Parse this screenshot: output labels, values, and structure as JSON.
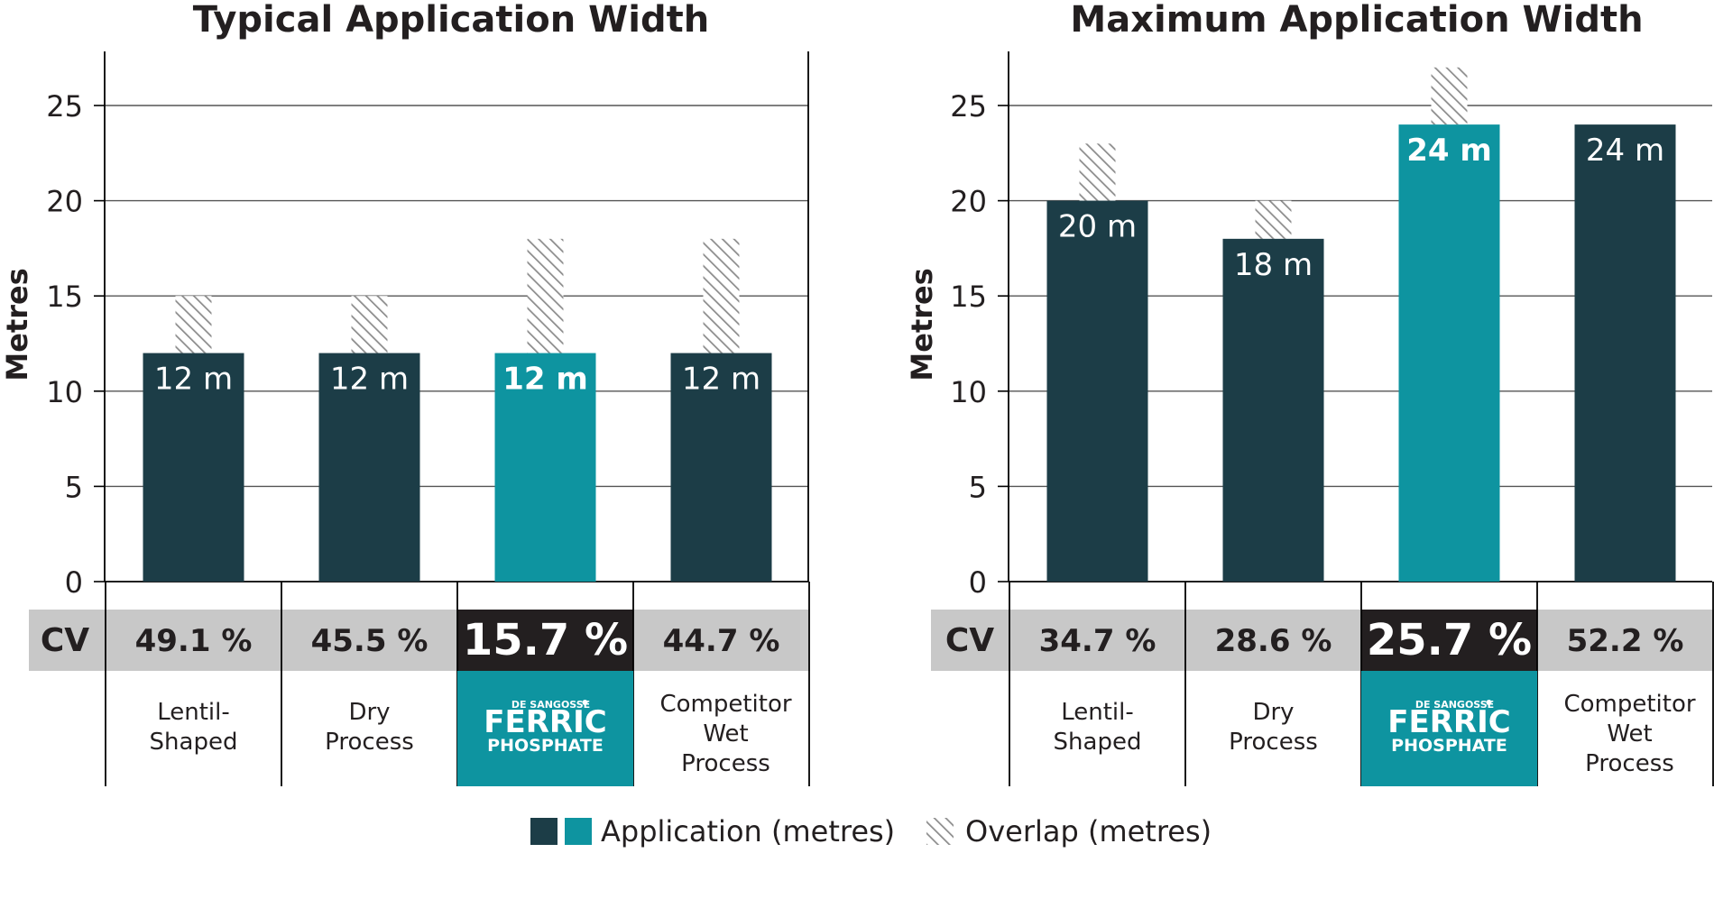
{
  "colors": {
    "dark_bar": "#1c3d47",
    "teal_bar": "#0e94a0",
    "cv_band": "#c8c8c8",
    "cv_highlight": "#231f20",
    "grid": "#000000",
    "text": "#231f20"
  },
  "legend": {
    "application_label": "Application (metres)",
    "overlap_label": "Overlap (metres)"
  },
  "brand": {
    "top_text": "DE SANGOSSE",
    "line1": "FERRIC",
    "line2": "PHOSPHATE"
  },
  "cv_label": "CV",
  "chart_data": [
    {
      "type": "bar",
      "title": "Typical Application Width",
      "ylabel": "Metres",
      "ylim": [
        0,
        27
      ],
      "yticks": [
        "0",
        "5",
        "10",
        "15",
        "20",
        "25"
      ],
      "grid": true,
      "categories": [
        {
          "lines": [
            "Lentil-",
            "Shaped"
          ],
          "brand": false
        },
        {
          "lines": [
            "Dry",
            "Process"
          ],
          "brand": false
        },
        {
          "lines": [],
          "brand": true
        },
        {
          "lines": [
            "Competitor",
            "Wet",
            "Process"
          ],
          "brand": false
        }
      ],
      "series": [
        {
          "name": "Application (metres)",
          "values": [
            12,
            12,
            12,
            12
          ]
        },
        {
          "name": "Overlap (metres)",
          "values": [
            3,
            3,
            6,
            6
          ]
        }
      ],
      "data_labels": [
        "12 m",
        "12 m",
        "12 m",
        "12 m"
      ],
      "highlight_index": 2,
      "cv": [
        "49.1 %",
        "45.5 %",
        "15.7 %",
        "44.7 %"
      ]
    },
    {
      "type": "bar",
      "title": "Maximum Application Width",
      "ylabel": "Metres",
      "ylim": [
        0,
        27
      ],
      "yticks": [
        "0",
        "5",
        "10",
        "15",
        "20",
        "25"
      ],
      "grid": true,
      "categories": [
        {
          "lines": [
            "Lentil-",
            "Shaped"
          ],
          "brand": false
        },
        {
          "lines": [
            "Dry",
            "Process"
          ],
          "brand": false
        },
        {
          "lines": [],
          "brand": true
        },
        {
          "lines": [
            "Competitor",
            "Wet",
            "Process"
          ],
          "brand": false
        }
      ],
      "series": [
        {
          "name": "Application (metres)",
          "values": [
            20,
            18,
            24,
            24
          ]
        },
        {
          "name": "Overlap (metres)",
          "values": [
            3,
            2,
            3,
            0
          ]
        }
      ],
      "data_labels": [
        "20 m",
        "18 m",
        "24 m",
        "24 m"
      ],
      "highlight_index": 2,
      "cv": [
        "34.7 %",
        "28.6 %",
        "25.7 %",
        "52.2 %"
      ]
    }
  ]
}
